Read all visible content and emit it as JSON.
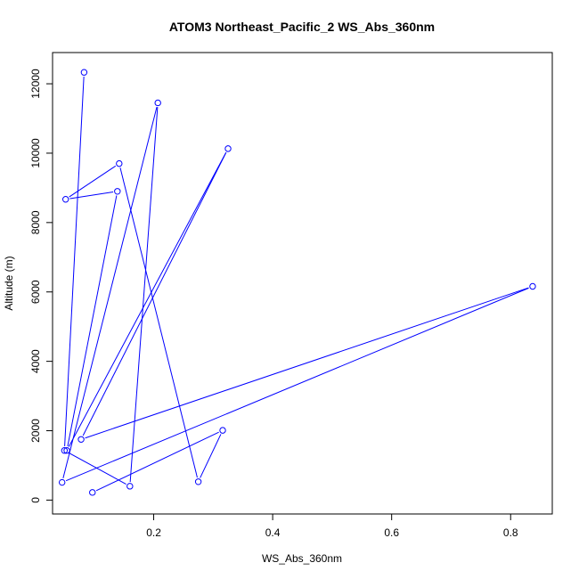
{
  "chart_data": {
    "type": "line",
    "title": "ATOM3 Northeast_Pacific_2 WS_Abs_360nm",
    "xlabel": "WS_Abs_360nm",
    "ylabel": "Altitude (m)",
    "xlim": [
      0.03,
      0.87
    ],
    "ylim": [
      -400,
      12900
    ],
    "xticks": [
      0.2,
      0.4,
      0.6,
      0.8
    ],
    "yticks": [
      0,
      2000,
      4000,
      6000,
      8000,
      10000,
      12000
    ],
    "xtick_labels": [
      "0.2",
      "0.4",
      "0.6",
      "0.8"
    ],
    "ytick_labels": [
      "0",
      "2000",
      "4000",
      "6000",
      "8000",
      "10000",
      "12000"
    ],
    "grid": false,
    "color": "#0000ff",
    "marker": "open-circle",
    "series": [
      {
        "x": [
          0.097,
          0.316,
          0.275,
          0.142,
          0.052,
          0.139,
          0.054,
          0.325,
          0.078,
          0.837,
          0.046,
          0.207,
          0.16,
          0.05,
          0.083
        ],
        "y": [
          220,
          2010,
          530,
          9700,
          8670,
          8900,
          1430,
          10130,
          1750,
          6160,
          510,
          11450,
          400,
          1430,
          12330
        ]
      }
    ]
  }
}
